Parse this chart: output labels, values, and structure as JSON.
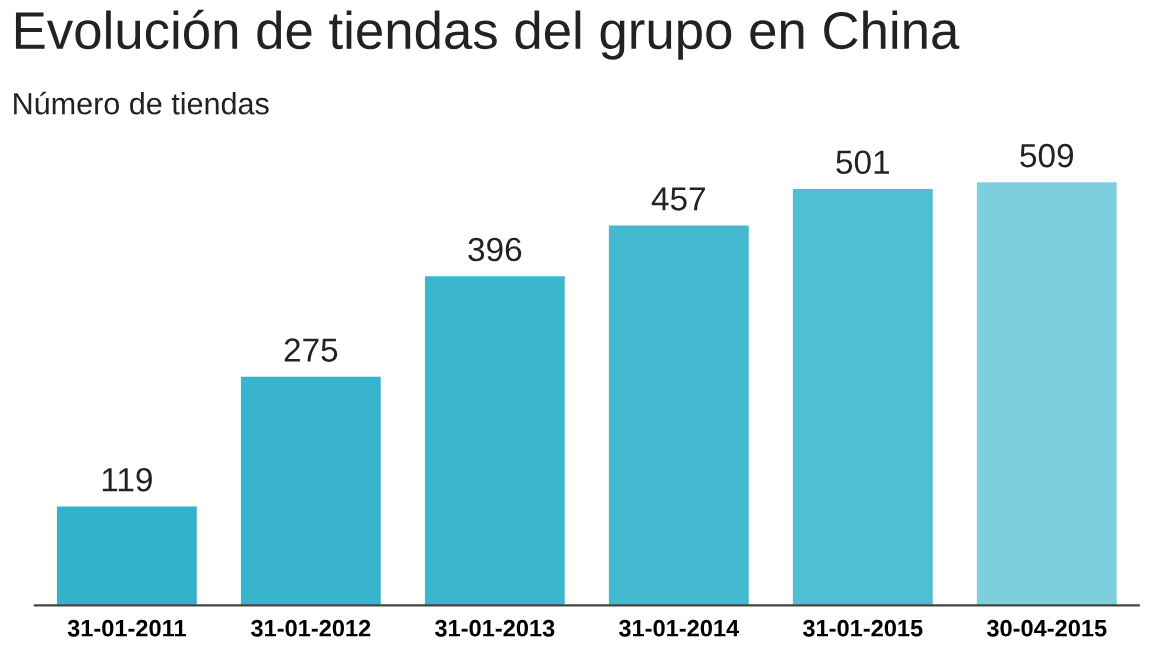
{
  "chart_data": {
    "type": "bar",
    "title": "Evolución de tiendas del grupo en China",
    "subtitle": "Número de tiendas",
    "categories": [
      "31-01-2011",
      "31-01-2012",
      "31-01-2013",
      "31-01-2014",
      "31-01-2015",
      "30-04-2015"
    ],
    "values": [
      119,
      275,
      396,
      457,
      501,
      509
    ],
    "colors": [
      "#33b2cb",
      "#38b4cc",
      "#3cb6cd",
      "#44bad0",
      "#4fbfd3",
      "#7ccfdc"
    ],
    "data_labels": true,
    "grid": false,
    "legend": false
  }
}
